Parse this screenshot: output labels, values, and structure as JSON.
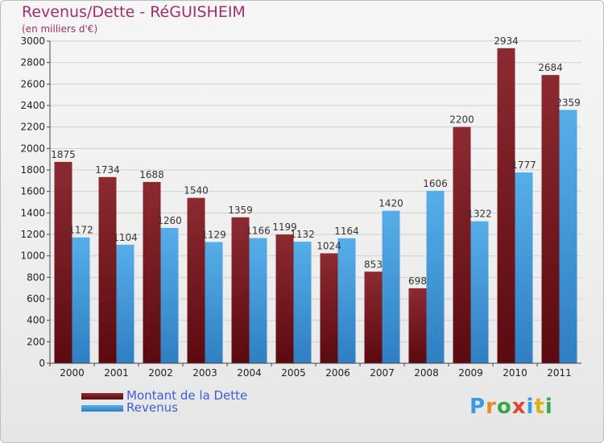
{
  "title": "Revenus/Dette - RéGUISHEIM",
  "subtitle": "(en milliers d'€)",
  "logo_text": "Proxiti",
  "colors": {
    "dette": "#7b1c22",
    "revenus": "#4aa3e0",
    "title": "#a0306a",
    "legend_text": "#3f5dd6"
  },
  "chart_data": {
    "type": "bar",
    "title": "Revenus/Dette - RéGUISHEIM",
    "ylabel": "(en milliers d'€)",
    "xlabel": "",
    "categories": [
      "2000",
      "2001",
      "2002",
      "2003",
      "2004",
      "2005",
      "2006",
      "2007",
      "2008",
      "2009",
      "2010",
      "2011"
    ],
    "ylim": [
      0,
      3000
    ],
    "yticks": [
      0,
      200,
      400,
      600,
      800,
      1000,
      1200,
      1400,
      1600,
      1800,
      2000,
      2200,
      2400,
      2600,
      2800,
      3000
    ],
    "grid": true,
    "legend_position": "bottom-left",
    "series": [
      {
        "name": "Montant de la Dette",
        "color": "#7b1c22",
        "values": [
          1875,
          1734,
          1688,
          1540,
          1359,
          1199,
          1024,
          853,
          698,
          2200,
          2934,
          2684
        ]
      },
      {
        "name": "Revenus",
        "color": "#4aa3e0",
        "values": [
          1172,
          1104,
          1260,
          1129,
          1166,
          1132,
          1164,
          1420,
          1606,
          1322,
          1777,
          2359
        ]
      }
    ]
  }
}
